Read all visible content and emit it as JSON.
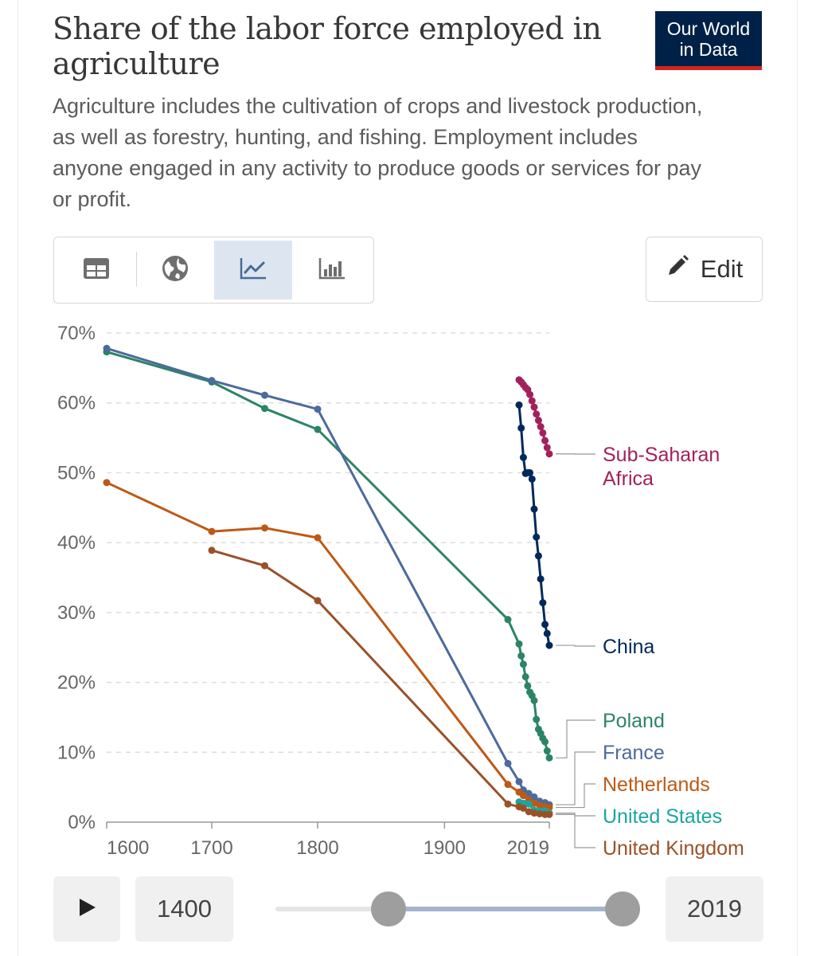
{
  "header": {
    "title": "Share of the labor force employed in agriculture",
    "subtitle": "Agriculture includes the cultivation of crops and livestock production, as well as forestry, hunting, and fishing. Employment includes anyone engaged in any activity to produce goods or services for pay or profit."
  },
  "logo": {
    "line1": "Our World",
    "line2": "in Data"
  },
  "toolbar": {
    "tabs": [
      {
        "name": "table-icon",
        "label": "Table"
      },
      {
        "name": "map-icon",
        "label": "Map"
      },
      {
        "name": "line-chart-icon",
        "label": "Line chart",
        "active": true
      },
      {
        "name": "bar-chart-icon",
        "label": "Bar chart"
      }
    ],
    "edit_label": "Edit"
  },
  "timeline": {
    "start_label": "1400",
    "end_label": "2019",
    "start_fraction": 0.0,
    "end_fraction": 1.0
  },
  "colors": {
    "brand": "#002147",
    "brand_accent": "#ce261e",
    "active_tab": "#dde6f0"
  },
  "chart_data": {
    "type": "line",
    "title": "Share of the labor force employed in agriculture",
    "ylabel": "",
    "xlabel": "",
    "ylim": [
      0,
      70
    ],
    "yticks": [
      0,
      10,
      20,
      30,
      40,
      50,
      60,
      70
    ],
    "ytick_labels": [
      "0%",
      "10%",
      "20%",
      "30%",
      "40%",
      "50%",
      "60%",
      "70%"
    ],
    "xticks": [
      1600,
      1700,
      1800,
      1900,
      2019
    ],
    "xtick_labels": [
      "1600",
      "1700",
      "1800",
      "1900",
      "2019"
    ],
    "x_axis_note": "Non-linear time axis (1600–1950 spaced broadly; 1950–2019 compressed)",
    "grid": "horizontal dashed",
    "series": [
      {
        "name": "Sub-Saharan Africa",
        "label_lines": [
          "Sub-Saharan",
          "Africa"
        ],
        "color": "#a2215b",
        "points": [
          [
            1991,
            63.3
          ],
          [
            1993,
            63.0
          ],
          [
            1995,
            62.6
          ],
          [
            1997,
            62.2
          ],
          [
            1999,
            61.9
          ],
          [
            2001,
            61.2
          ],
          [
            2003,
            60.3
          ],
          [
            2005,
            59.4
          ],
          [
            2007,
            58.4
          ],
          [
            2009,
            57.5
          ],
          [
            2011,
            56.6
          ],
          [
            2013,
            55.7
          ],
          [
            2015,
            54.6
          ],
          [
            2017,
            53.6
          ],
          [
            2019,
            52.7
          ]
        ]
      },
      {
        "name": "China",
        "label_lines": [
          "China"
        ],
        "color": "#00295b",
        "points": [
          [
            1991,
            59.7
          ],
          [
            1993,
            56.4
          ],
          [
            1995,
            52.2
          ],
          [
            1997,
            49.9
          ],
          [
            1999,
            50.0
          ],
          [
            2001,
            50.0
          ],
          [
            2003,
            49.1
          ],
          [
            2005,
            44.8
          ],
          [
            2007,
            40.8
          ],
          [
            2009,
            38.1
          ],
          [
            2011,
            34.8
          ],
          [
            2013,
            31.4
          ],
          [
            2015,
            28.3
          ],
          [
            2017,
            27.0
          ],
          [
            2019,
            25.3
          ]
        ]
      },
      {
        "name": "Poland",
        "label_lines": [
          "Poland"
        ],
        "color": "#2c8465",
        "points": [
          [
            1600,
            67.3
          ],
          [
            1700,
            63.0
          ],
          [
            1750,
            59.2
          ],
          [
            1800,
            56.2
          ],
          [
            1950,
            29.0
          ],
          [
            1991,
            25.5
          ],
          [
            1993,
            23.8
          ],
          [
            1995,
            22.6
          ],
          [
            1997,
            20.8
          ],
          [
            1999,
            19.5
          ],
          [
            2001,
            18.6
          ],
          [
            2003,
            18.1
          ],
          [
            2005,
            17.4
          ],
          [
            2007,
            14.7
          ],
          [
            2009,
            13.3
          ],
          [
            2011,
            12.7
          ],
          [
            2013,
            12.0
          ],
          [
            2015,
            11.5
          ],
          [
            2017,
            10.2
          ],
          [
            2019,
            9.2
          ]
        ]
      },
      {
        "name": "France",
        "label_lines": [
          "France"
        ],
        "color": "#4c6a9c",
        "points": [
          [
            1600,
            67.8
          ],
          [
            1700,
            63.2
          ],
          [
            1750,
            61.1
          ],
          [
            1800,
            59.1
          ],
          [
            1950,
            8.4
          ],
          [
            1991,
            5.8
          ],
          [
            1995,
            4.6
          ],
          [
            2000,
            4.1
          ],
          [
            2005,
            3.6
          ],
          [
            2010,
            3.0
          ],
          [
            2015,
            2.8
          ],
          [
            2019,
            2.5
          ]
        ]
      },
      {
        "name": "Netherlands",
        "label_lines": [
          "Netherlands"
        ],
        "color": "#be5915",
        "points": [
          [
            1600,
            48.6
          ],
          [
            1700,
            41.6
          ],
          [
            1750,
            42.1
          ],
          [
            1800,
            40.7
          ],
          [
            1950,
            5.4
          ],
          [
            1991,
            4.3
          ],
          [
            1995,
            3.8
          ],
          [
            2000,
            3.2
          ],
          [
            2005,
            2.7
          ],
          [
            2010,
            2.4
          ],
          [
            2015,
            2.2
          ],
          [
            2019,
            2.1
          ]
        ]
      },
      {
        "name": "United States",
        "label_lines": [
          "United States"
        ],
        "color": "#18a69f",
        "points": [
          [
            1991,
            2.9
          ],
          [
            1995,
            2.7
          ],
          [
            2000,
            2.6
          ],
          [
            2005,
            1.7
          ],
          [
            2010,
            1.6
          ],
          [
            2015,
            1.6
          ],
          [
            2019,
            1.3
          ]
        ]
      },
      {
        "name": "United Kingdom",
        "label_lines": [
          "United Kingdom"
        ],
        "color": "#9a5129",
        "points": [
          [
            1700,
            38.9
          ],
          [
            1750,
            36.7
          ],
          [
            1800,
            31.7
          ],
          [
            1950,
            2.6
          ],
          [
            1991,
            2.2
          ],
          [
            1995,
            2.0
          ],
          [
            2000,
            1.5
          ],
          [
            2005,
            1.3
          ],
          [
            2010,
            1.2
          ],
          [
            2015,
            1.1
          ],
          [
            2019,
            1.1
          ]
        ]
      }
    ]
  }
}
